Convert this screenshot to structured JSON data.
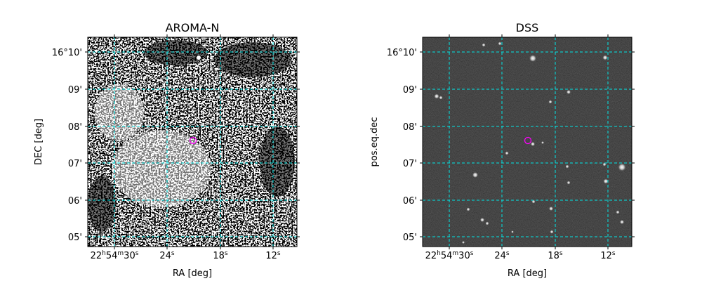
{
  "chart_data": [
    {
      "type": "image",
      "title": "AROMA-N",
      "xlabel": "RA [deg]",
      "ylabel": "DEC [deg]",
      "x_tick_labels": [
        {
          "base": "22",
          "u1": "h",
          "m": "54",
          "u2": "m",
          "s": "30",
          "u3": "s"
        },
        {
          "base": "24",
          "u3": "s"
        },
        {
          "base": "18",
          "u3": "s"
        },
        {
          "base": "12",
          "u3": "s"
        }
      ],
      "y_tick_labels": [
        "16°10'",
        "09'",
        "08'",
        "07'",
        "06'",
        "05'"
      ],
      "grid": true,
      "grid_color": "#00e5e5",
      "image_style": "noisy black-and-white binary map",
      "marker": {
        "shape": "circle",
        "color": "#ff00ff"
      }
    },
    {
      "type": "image",
      "title": "DSS",
      "xlabel": "RA [deg]",
      "ylabel": "pos.eq.dec",
      "x_tick_labels": [
        {
          "base": "22",
          "u1": "h",
          "m": "54",
          "u2": "m",
          "s": "30",
          "u3": "s"
        },
        {
          "base": "24",
          "u3": "s"
        },
        {
          "base": "18",
          "u3": "s"
        },
        {
          "base": "12",
          "u3": "s"
        }
      ],
      "y_tick_labels": [
        "16°10'",
        "09'",
        "08'",
        "07'",
        "06'",
        "05'"
      ],
      "grid": true,
      "grid_color": "#00e5e5",
      "image_style": "dark starfield with point sources",
      "marker": {
        "shape": "circle",
        "color": "#ff00ff"
      }
    }
  ]
}
